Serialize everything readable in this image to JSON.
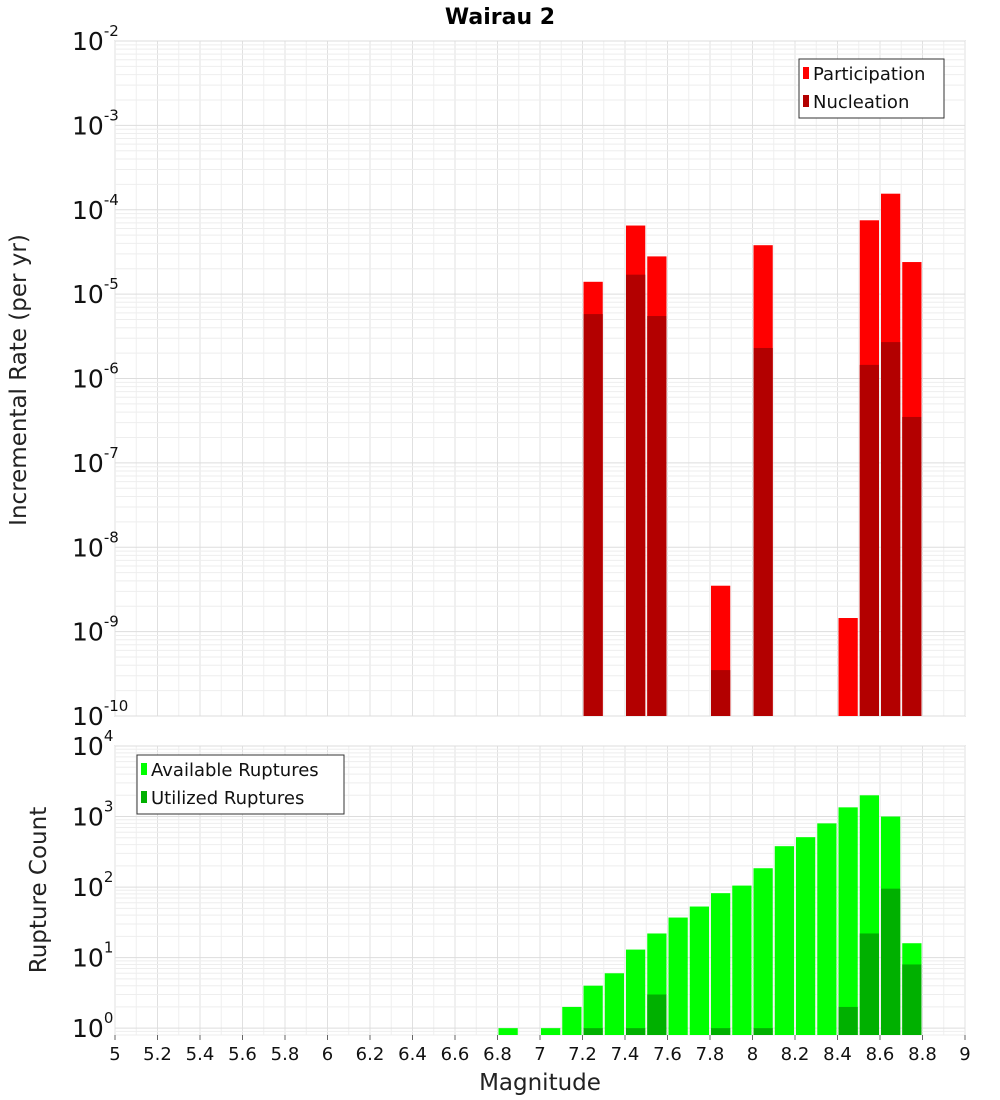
{
  "title": "Wairau 2",
  "chart_data": [
    {
      "type": "bar",
      "ylabel": "Incremental Rate (per yr)",
      "yscale": "log",
      "ylim": [
        1e-10,
        0.01
      ],
      "xlim": [
        5,
        9
      ],
      "ytick_labels": [
        {
          "base": "10",
          "exp": "-10"
        },
        {
          "base": "10",
          "exp": "-9"
        },
        {
          "base": "10",
          "exp": "-8"
        },
        {
          "base": "10",
          "exp": "-7"
        },
        {
          "base": "10",
          "exp": "-6"
        },
        {
          "base": "10",
          "exp": "-5"
        },
        {
          "base": "10",
          "exp": "-4"
        },
        {
          "base": "10",
          "exp": "-3"
        },
        {
          "base": "10",
          "exp": "-2"
        }
      ],
      "legend_position": "top-right",
      "series": [
        {
          "name": "Participation",
          "color": "#ff0000",
          "x": [
            7.25,
            7.45,
            7.55,
            7.85,
            8.05,
            8.45,
            8.55,
            8.65,
            8.75
          ],
          "values": [
            1.4e-05,
            6.5e-05,
            2.8e-05,
            3.5e-09,
            3.8e-05,
            1.45e-09,
            7.5e-05,
            0.000155,
            2.4e-05
          ]
        },
        {
          "name": "Nucleation",
          "color": "#b30000",
          "x": [
            7.25,
            7.45,
            7.55,
            7.85,
            8.05,
            8.55,
            8.65,
            8.75
          ],
          "values": [
            5.8e-06,
            1.7e-05,
            5.5e-06,
            3.5e-10,
            2.3e-06,
            1.45e-06,
            2.7e-06,
            3.5e-07
          ]
        }
      ]
    },
    {
      "type": "bar",
      "ylabel": "Rupture Count",
      "xlabel": "Magnitude",
      "yscale": "log",
      "ylim": [
        0.8,
        10000
      ],
      "xlim": [
        5,
        9
      ],
      "xtick_labels": [
        "5",
        "5.2",
        "5.4",
        "5.6",
        "5.8",
        "6",
        "6.2",
        "6.4",
        "6.6",
        "6.8",
        "7",
        "7.2",
        "7.4",
        "7.6",
        "7.8",
        "8",
        "8.2",
        "8.4",
        "8.6",
        "8.8",
        "9"
      ],
      "ytick_labels": [
        {
          "base": "10",
          "exp": "0"
        },
        {
          "base": "10",
          "exp": "1"
        },
        {
          "base": "10",
          "exp": "2"
        },
        {
          "base": "10",
          "exp": "3"
        },
        {
          "base": "10",
          "exp": "4"
        }
      ],
      "legend_position": "top-left",
      "series": [
        {
          "name": "Available Ruptures",
          "color": "#00ff00",
          "x": [
            6.85,
            7.05,
            7.15,
            7.25,
            7.35,
            7.45,
            7.55,
            7.65,
            7.75,
            7.85,
            7.95,
            8.05,
            8.15,
            8.25,
            8.35,
            8.45,
            8.55,
            8.65,
            8.75
          ],
          "values": [
            1,
            1,
            2,
            4,
            6,
            13,
            22,
            37,
            53,
            82,
            105,
            185,
            380,
            510,
            800,
            1350,
            2000,
            1000,
            16
          ]
        },
        {
          "name": "Utilized Ruptures",
          "color": "#00b000",
          "x": [
            7.25,
            7.45,
            7.55,
            7.85,
            8.05,
            8.45,
            8.55,
            8.65,
            8.75
          ],
          "values": [
            1,
            1,
            3,
            1,
            1,
            2,
            22,
            95,
            8
          ]
        }
      ]
    }
  ]
}
